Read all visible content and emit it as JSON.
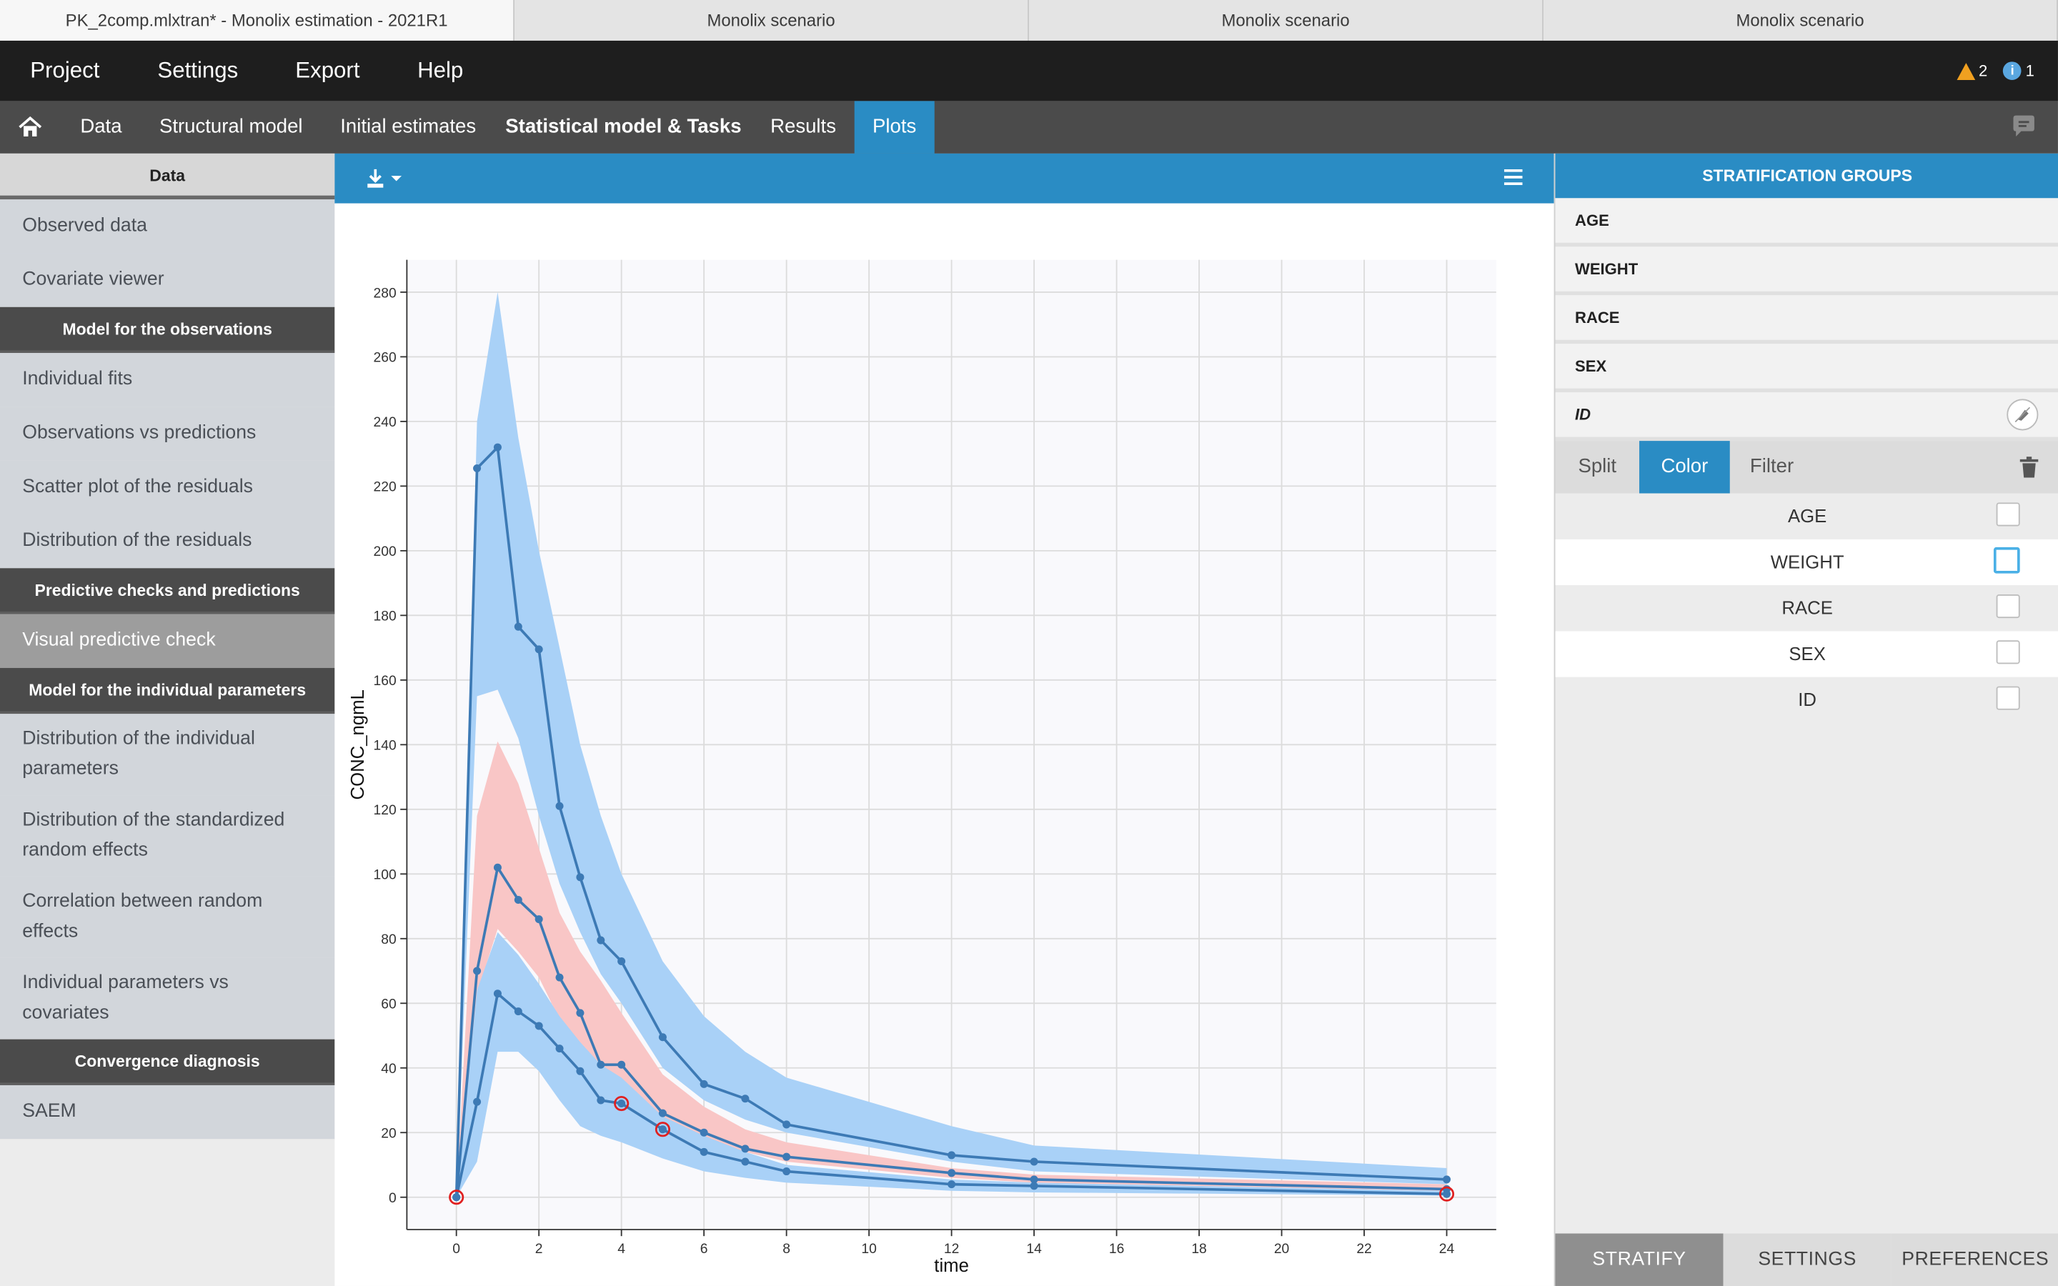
{
  "window_tabs": [
    "PK_2comp.mlxtran* - Monolix estimation - 2021R1",
    "Monolix scenario",
    "Monolix scenario",
    "Monolix scenario"
  ],
  "menu": {
    "project": "Project",
    "settings": "Settings",
    "export": "Export",
    "help": "Help",
    "warnings": "2",
    "infos": "1"
  },
  "nav": {
    "data": "Data",
    "structural_model": "Structural model",
    "initial_estimates": "Initial estimates",
    "statistical_model": "Statistical model & Tasks",
    "results": "Results",
    "plots": "Plots"
  },
  "sidebar": {
    "data_header": "Data",
    "observed_data": "Observed data",
    "covariate_viewer": "Covariate viewer",
    "obs_header": "Model for the observations",
    "individual_fits": "Individual fits",
    "obs_vs_pred": "Observations vs predictions",
    "scatter_residuals": "Scatter plot of the residuals",
    "dist_residuals": "Distribution of the residuals",
    "pred_header": "Predictive checks and predictions",
    "vpc": "Visual predictive check",
    "indiv_header": "Model for the individual parameters",
    "dist_indiv": "Distribution of the individual parameters",
    "dist_std": "Distribution of the standardized random effects",
    "corr_random": "Correlation between random effects",
    "indiv_vs_cov": "Individual parameters vs covariates",
    "conv_header": "Convergence diagnosis",
    "saem": "SAEM"
  },
  "right_panel": {
    "header": "STRATIFICATION GROUPS",
    "groups": [
      "AGE",
      "WEIGHT",
      "RACE",
      "SEX",
      "ID"
    ],
    "mode_tabs": {
      "split": "Split",
      "color": "Color",
      "filter": "Filter"
    },
    "covariates": [
      "AGE",
      "WEIGHT",
      "RACE",
      "SEX",
      "ID"
    ],
    "bottom_tabs": {
      "stratify": "STRATIFY",
      "settings": "SETTINGS",
      "preferences": "PREFERENCES"
    }
  },
  "colors": {
    "accent": "#2a8cc4",
    "band_blue": "#a9d1f7",
    "band_red": "#f9c6c6",
    "line": "#3d7ab5",
    "outlier": "#e02020"
  },
  "chart_data": {
    "type": "line",
    "xlabel": "time",
    "ylabel": "CONC_ngmL",
    "xlim": [
      -1.2,
      25.2
    ],
    "ylim": [
      -10,
      290
    ],
    "xticks": [
      0,
      2,
      4,
      6,
      8,
      10,
      12,
      14,
      16,
      18,
      20,
      22,
      24
    ],
    "yticks": [
      0,
      20,
      40,
      60,
      80,
      100,
      120,
      140,
      160,
      180,
      200,
      220,
      240,
      260,
      280
    ],
    "grid": true,
    "x": [
      0,
      0.5,
      1,
      1.5,
      2,
      2.5,
      3,
      3.5,
      4,
      5,
      6,
      7,
      8,
      12,
      14,
      24
    ],
    "series": [
      {
        "values": [
          0,
          225.5,
          232,
          176.5,
          169.5,
          121,
          99,
          79.5,
          73,
          49.5,
          35,
          30.5,
          22.5,
          13,
          11,
          5.5
        ]
      },
      {
        "values": [
          0,
          70,
          102,
          92,
          86,
          68,
          57,
          41,
          41,
          26,
          20,
          15,
          12.5,
          7.5,
          5.5,
          2.5
        ]
      },
      {
        "values": [
          0,
          29.5,
          63,
          57.5,
          53,
          46,
          39,
          30,
          29,
          21,
          14,
          11,
          8,
          4,
          3.5,
          1
        ]
      }
    ],
    "bands": [
      {
        "color": "blue",
        "upper": [
          0,
          240,
          280,
          235,
          200,
          170,
          140,
          118,
          100,
          73,
          56,
          45,
          37,
          22,
          16,
          9
        ],
        "lower": [
          0,
          155,
          157,
          142,
          118,
          97,
          82,
          69,
          60,
          40,
          30,
          24,
          20,
          11,
          8,
          4
        ]
      },
      {
        "color": "red",
        "upper": [
          0,
          118,
          141,
          128,
          108,
          88,
          76,
          67,
          57,
          38,
          28,
          21,
          17,
          9,
          7,
          4
        ],
        "lower": [
          0,
          63,
          83,
          76,
          68,
          55,
          46,
          38,
          34,
          23,
          18,
          14,
          11,
          6,
          4.5,
          2
        ]
      },
      {
        "color": "blue",
        "upper": [
          0,
          64,
          82,
          75,
          66,
          56,
          48,
          41,
          37,
          25,
          19,
          14,
          10,
          5.5,
          4.5,
          2
        ],
        "lower": [
          0,
          11,
          45,
          45,
          39,
          30,
          22,
          19,
          17,
          12,
          8,
          6,
          4.5,
          2,
          1.5,
          0.5
        ]
      }
    ],
    "outliers": [
      {
        "x": 0,
        "y": 0
      },
      {
        "x": 4,
        "y": 29
      },
      {
        "x": 5,
        "y": 21
      },
      {
        "x": 24,
        "y": 1
      }
    ]
  }
}
